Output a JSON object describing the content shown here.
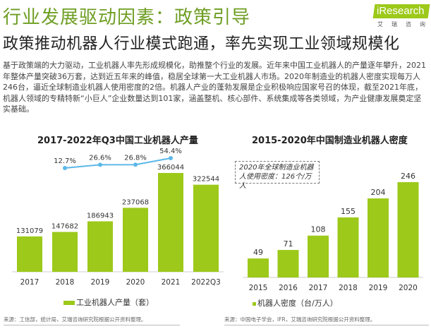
{
  "header": {
    "title": "行业发展驱动因素：政策引导",
    "subtitle": "政策推动机器人行业模式跑通，率先实现工业领域规模化",
    "logo": "iResearch",
    "logo_sub": "艾瑞咨询"
  },
  "body_text": "基于政策端的大力驱动，工业机器人率先形成规模化，助推整个行业的发展。近年来中国工业机器人的产量逐年攀升，2021年整体产量突破36万套，达到近五年来的峰值，稳居全球第一大工业机器人市场。2020年制造业的机器人密度实现每万人246台，逼近全球制造业机器人使用密度的2倍。机器人产业的蓬勃发展是企业积极响应国家号召的体现，截至2021年底，机器人领域的专精特新“小巨人”企业数量达到101家，涵盖整机、核心部件、系统集成等各类领域，为产业健康发展奠定坚实基础。",
  "colors": {
    "accent": "#6e9e23",
    "bar": "#9dc91a",
    "line": "#5bb8e8"
  },
  "chart_data": [
    {
      "type": "bar",
      "title": "2017-2022年Q3中国工业机器人产量",
      "categories": [
        "2017",
        "2018",
        "2019",
        "2020",
        "2021",
        "2022Q3"
      ],
      "series": [
        {
          "name": "工业机器人产量（套）",
          "values": [
            131079,
            147682,
            186943,
            237068,
            366044,
            322544
          ]
        }
      ],
      "line_labels": [
        {
          "category": "2018",
          "label": "12.7%",
          "value": 12.7
        },
        {
          "category": "2019",
          "label": "26.6%",
          "value": 26.6
        },
        {
          "category": "2020",
          "label": "26.8%",
          "value": 26.8
        },
        {
          "category": "2021",
          "label": "54.4%",
          "value": 54.4
        }
      ],
      "source": "来源：工信部，统计局，艾瑞咨询研究院根据公开资料整理。"
    },
    {
      "type": "bar",
      "title": "2015-2020年中国制造业机器人密度",
      "categories": [
        "2015",
        "2016",
        "2017",
        "2018",
        "2019",
        "2020"
      ],
      "series": [
        {
          "name": "机器人密度（台/万人）",
          "values": [
            49,
            71,
            108,
            155,
            204,
            246
          ]
        }
      ],
      "annotation": "2020年全球制造业机器人使用密度：126个/万人",
      "source": "来源：中国电子学会，IFR，艾瑞咨询研究院根据公开资料整理。"
    }
  ]
}
